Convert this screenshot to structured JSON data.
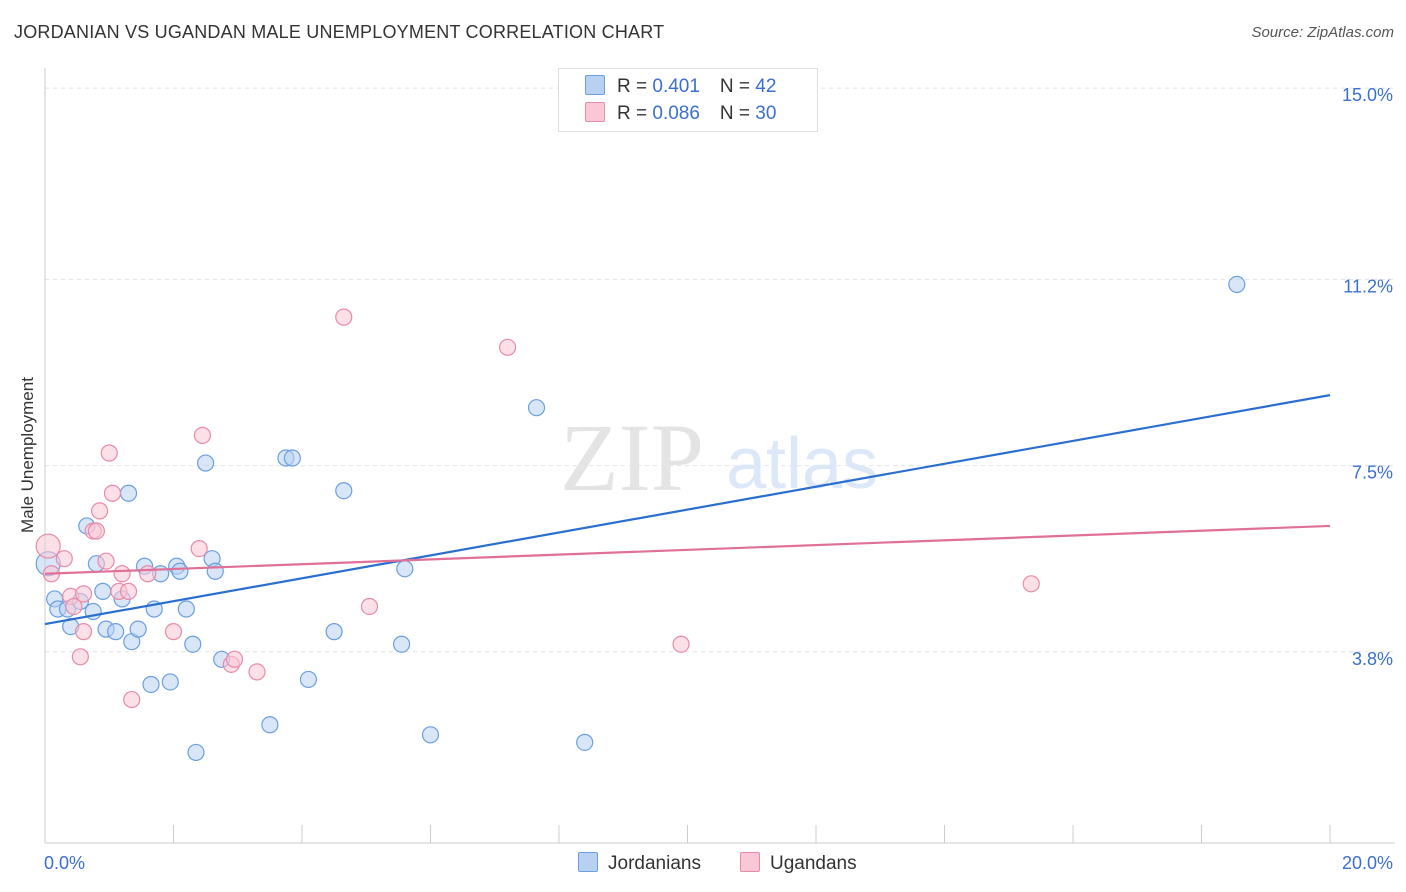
{
  "title": "JORDANIAN VS UGANDAN MALE UNEMPLOYMENT CORRELATION CHART",
  "source": "Source: ZipAtlas.com",
  "watermark": {
    "zip": "ZIP",
    "atlas": "atlas"
  },
  "legend": [
    {
      "r_label": "R = ",
      "r_value": "0.401",
      "n_label": "N = ",
      "n_value": "42",
      "color": "#b8d1f3",
      "border": "#6a9fe0"
    },
    {
      "r_label": "R = ",
      "r_value": "0.086",
      "n_label": "N = ",
      "n_value": "30",
      "color": "#f9c7d6",
      "border": "#e88aa8"
    }
  ],
  "bottom_legend": [
    "Jordanians",
    "Ugandans"
  ],
  "chart_data": {
    "type": "scatter",
    "title": "JORDANIAN VS UGANDAN MALE UNEMPLOYMENT CORRELATION CHART",
    "xlabel": "",
    "ylabel": "Male Unemployment",
    "xlim": [
      0,
      20
    ],
    "ylim": [
      0,
      15.4
    ],
    "x_tick_labels": [
      {
        "value": 0,
        "label": "0.0%"
      },
      {
        "value": 20,
        "label": "20.0%"
      }
    ],
    "y_tick_labels": [
      {
        "value": 3.8,
        "label": "3.8%"
      },
      {
        "value": 7.5,
        "label": "7.5%"
      },
      {
        "value": 11.2,
        "label": "11.2%"
      },
      {
        "value": 15.0,
        "label": "15.0%"
      }
    ],
    "x_minor_ticks": [
      0,
      2,
      4,
      6,
      8,
      10,
      12,
      14,
      16,
      18,
      20
    ],
    "series": [
      {
        "name": "Jordanians",
        "color": "#6a9fe0",
        "fill": "#b8d1f3",
        "trend": {
          "x": [
            0,
            20
          ],
          "y": [
            4.35,
            8.9
          ],
          "color": "#2a6fd0"
        },
        "points": [
          [
            0.05,
            5.55
          ],
          [
            0.15,
            4.85
          ],
          [
            0.2,
            4.65
          ],
          [
            0.35,
            4.65
          ],
          [
            0.4,
            4.3
          ],
          [
            0.55,
            4.8
          ],
          [
            0.65,
            6.3
          ],
          [
            0.75,
            4.6
          ],
          [
            0.8,
            5.55
          ],
          [
            0.9,
            5.0
          ],
          [
            0.95,
            4.25
          ],
          [
            1.1,
            4.2
          ],
          [
            1.2,
            4.85
          ],
          [
            1.3,
            6.95
          ],
          [
            1.35,
            4.0
          ],
          [
            1.45,
            4.25
          ],
          [
            1.55,
            5.5
          ],
          [
            1.65,
            3.15
          ],
          [
            1.7,
            4.65
          ],
          [
            1.8,
            5.35
          ],
          [
            1.95,
            3.2
          ],
          [
            2.05,
            5.5
          ],
          [
            2.1,
            5.4
          ],
          [
            2.2,
            4.65
          ],
          [
            2.3,
            3.95
          ],
          [
            2.35,
            1.8
          ],
          [
            2.5,
            7.55
          ],
          [
            2.6,
            5.65
          ],
          [
            2.65,
            5.4
          ],
          [
            2.75,
            3.65
          ],
          [
            3.5,
            2.35
          ],
          [
            3.75,
            7.65
          ],
          [
            3.85,
            7.65
          ],
          [
            4.1,
            3.25
          ],
          [
            4.5,
            4.2
          ],
          [
            4.65,
            7.0
          ],
          [
            5.55,
            3.95
          ],
          [
            5.6,
            5.45
          ],
          [
            6.0,
            2.15
          ],
          [
            7.65,
            8.65
          ],
          [
            8.4,
            2.0
          ],
          [
            18.55,
            11.1
          ]
        ]
      },
      {
        "name": "Ugandans",
        "color": "#e88aa8",
        "fill": "#f9c7d6",
        "trend": {
          "x": [
            0,
            20
          ],
          "y": [
            5.35,
            6.3
          ],
          "color": "#e07098"
        },
        "points": [
          [
            0.05,
            5.9
          ],
          [
            0.1,
            5.35
          ],
          [
            0.3,
            5.65
          ],
          [
            0.4,
            4.9
          ],
          [
            0.45,
            4.7
          ],
          [
            0.55,
            3.7
          ],
          [
            0.6,
            4.2
          ],
          [
            0.75,
            6.2
          ],
          [
            0.8,
            6.2
          ],
          [
            0.85,
            6.6
          ],
          [
            0.95,
            5.6
          ],
          [
            1.0,
            7.75
          ],
          [
            1.05,
            6.95
          ],
          [
            1.15,
            5.0
          ],
          [
            1.2,
            5.35
          ],
          [
            1.3,
            5.0
          ],
          [
            1.35,
            2.85
          ],
          [
            1.6,
            5.35
          ],
          [
            2.0,
            4.2
          ],
          [
            2.4,
            5.85
          ],
          [
            2.45,
            8.1
          ],
          [
            2.9,
            3.55
          ],
          [
            2.95,
            3.65
          ],
          [
            3.3,
            3.4
          ],
          [
            4.65,
            10.45
          ],
          [
            5.05,
            4.7
          ],
          [
            7.2,
            9.85
          ],
          [
            9.9,
            3.95
          ],
          [
            15.35,
            5.15
          ],
          [
            0.6,
            4.95
          ]
        ]
      }
    ]
  }
}
